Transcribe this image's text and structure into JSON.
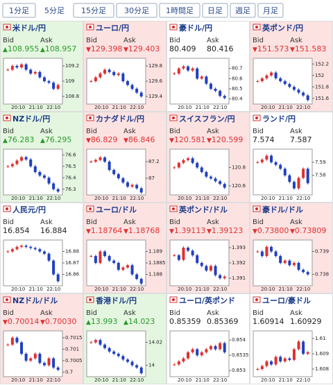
{
  "tabs": [
    "1分足",
    "5分足",
    "15分足",
    "30分足",
    "1時間足",
    "日足",
    "週足",
    "月足"
  ],
  "selected_tab": 1,
  "bid_label": "Bid",
  "ask_label": "Ask",
  "time_labels": [
    "20:10",
    "21:10",
    "22:10"
  ],
  "tiles": [
    {
      "name": "米ドル/円",
      "arrow": "▲",
      "bid": "108.955",
      "ask": "108.957",
      "ylim": [
        108.7,
        109.3
      ],
      "yticks": [
        109.2,
        109,
        108.8
      ],
      "closes": [
        109.15,
        109.2,
        109.18,
        109.22,
        109.15,
        109.1,
        109.12,
        109.05,
        109.0,
        108.98,
        108.9,
        108.95
      ]
    },
    {
      "name": "ユーロ/円",
      "arrow": "▼",
      "bid": "129.398",
      "ask": "129.403",
      "ylim": [
        129.3,
        129.9
      ],
      "yticks": [
        129.8,
        129.6,
        129.4
      ],
      "closes": [
        129.6,
        129.65,
        129.7,
        129.75,
        129.72,
        129.68,
        129.7,
        129.6,
        129.55,
        129.5,
        129.45,
        129.4
      ]
    },
    {
      "name": "豪ドル/円",
      "bid": "80.409",
      "ask": "80.416",
      "ylim": [
        80.35,
        80.8
      ],
      "yticks": [
        80.7,
        80.6,
        80.5,
        80.4
      ],
      "closes": [
        80.65,
        80.7,
        80.72,
        80.68,
        80.7,
        80.6,
        80.62,
        80.55,
        80.5,
        80.48,
        80.43,
        80.41
      ]
    },
    {
      "name": "英ポンド/円",
      "arrow": "▼",
      "bid": "151.573",
      "ask": "151.583",
      "ylim": [
        151.5,
        152.3
      ],
      "yticks": [
        152.2,
        152,
        151.8,
        151.6
      ],
      "closes": [
        151.9,
        151.95,
        152.0,
        152.05,
        151.95,
        151.9,
        151.85,
        151.8,
        151.75,
        151.7,
        151.65,
        151.57
      ]
    },
    {
      "name": "NZドル/円",
      "arrow": "▲",
      "bid": "76.283",
      "ask": "76.295",
      "ylim": [
        76.25,
        76.65
      ],
      "yticks": [
        76.6,
        76.5,
        76.4,
        76.3
      ],
      "closes": [
        76.5,
        76.52,
        76.55,
        76.58,
        76.56,
        76.5,
        76.45,
        76.42,
        76.4,
        76.35,
        76.3,
        76.28
      ]
    },
    {
      "name": "カナダドル/円",
      "arrow": "▼",
      "bid": "86.829",
      "ask": "86.846",
      "ylim": [
        86.8,
        87.35
      ],
      "yticks": [
        87.2,
        87
      ],
      "closes": [
        87.2,
        87.22,
        87.25,
        87.2,
        87.1,
        87.05,
        87.0,
        86.95,
        86.9,
        86.92,
        86.88,
        86.83
      ]
    },
    {
      "name": "スイスフラン/円",
      "arrow": "▼",
      "bid": "120.581",
      "ask": "120.599",
      "ylim": [
        120.5,
        121.0
      ],
      "yticks": [
        120.8,
        120.6
      ],
      "closes": [
        120.8,
        120.85,
        120.88,
        120.9,
        120.85,
        120.8,
        120.75,
        120.7,
        120.68,
        120.65,
        120.62,
        120.58
      ]
    },
    {
      "name": "ランド/円",
      "bid": "7.574",
      "ask": "7.587",
      "ylim": [
        7.565,
        7.6
      ],
      "yticks": [
        7.59,
        7.58
      ],
      "closes": [
        7.59,
        7.592,
        7.595,
        7.59,
        7.588,
        7.585,
        7.58,
        7.575,
        7.57,
        7.578,
        7.585,
        7.574
      ]
    },
    {
      "name": "人民元/円",
      "bid": "16.854",
      "ask": "16.884",
      "ylim": [
        16.85,
        16.89
      ],
      "yticks": [
        16.88,
        16.87,
        16.86
      ],
      "closes": [
        16.88,
        16.882,
        16.884,
        16.885,
        16.884,
        16.883,
        16.882,
        16.88,
        16.878,
        16.872,
        16.86,
        16.854
      ]
    },
    {
      "name": "ユーロ/ドル",
      "arrow": "▼",
      "bid": "1.18764",
      "ask": "1.18768",
      "ylim": [
        1.1875,
        1.1895
      ],
      "yticks": [
        1.189,
        1.1885,
        1.188
      ],
      "closes": [
        1.1888,
        1.1885,
        1.189,
        1.1888,
        1.1886,
        1.1885,
        1.1882,
        1.1883,
        1.1884,
        1.188,
        1.1878,
        1.1876
      ]
    },
    {
      "name": "英ポンド/ドル",
      "arrow": "▼",
      "bid": "1.39113",
      "ask": "1.39123",
      "ylim": [
        1.3905,
        1.3935
      ],
      "yticks": [
        1.393,
        1.392,
        1.391
      ],
      "closes": [
        1.3925,
        1.3922,
        1.393,
        1.3928,
        1.3925,
        1.392,
        1.3918,
        1.3915,
        1.3918,
        1.3912,
        1.391,
        1.3911
      ]
    },
    {
      "name": "豪ドル/ドル",
      "arrow": "▼",
      "bid": "0.73800",
      "ask": "0.73809",
      "ylim": [
        0.7375,
        0.7395
      ],
      "yticks": [
        0.739,
        0.738
      ],
      "closes": [
        0.739,
        0.7388,
        0.7392,
        0.739,
        0.7388,
        0.7385,
        0.7386,
        0.7384,
        0.7385,
        0.7382,
        0.7381,
        0.738
      ]
    },
    {
      "name": "NZドル/ドル",
      "arrow": "▼",
      "bid": "0.70014",
      "ask": "0.70030",
      "ylim": [
        0.6998,
        0.7018
      ],
      "yticks": [
        0.7015,
        0.701,
        0.7005,
        0.7
      ],
      "closes": [
        0.7012,
        0.7015,
        0.7013,
        0.7008,
        0.7005,
        0.7006,
        0.7008,
        0.7004,
        0.7003,
        0.7006,
        0.7002,
        0.7001
      ]
    },
    {
      "name": "香港ドル/円",
      "arrow": "▲",
      "bid": "13.993",
      "ask": "14.023",
      "ylim": [
        13.99,
        14.03
      ],
      "yticks": [
        14.02,
        14
      ],
      "closes": [
        14.02,
        14.022,
        14.018,
        14.015,
        14.012,
        14.01,
        14.008,
        14.005,
        14.003,
        14.0,
        13.998,
        13.993
      ]
    },
    {
      "name": "ユーロ/英ポンド",
      "bid": "0.85359",
      "ask": "0.85369",
      "ylim": [
        0.8528,
        0.8543
      ],
      "yticks": [
        0.854,
        0.8535,
        0.853
      ],
      "closes": [
        0.8532,
        0.8533,
        0.8534,
        0.8536,
        0.8537,
        0.8535,
        0.8536,
        0.8537,
        0.8538,
        0.8537,
        0.8539,
        0.8536
      ]
    },
    {
      "name": "ユーロ/豪ドル",
      "bid": "1.60914",
      "ask": "1.60929",
      "ylim": [
        1.6075,
        1.6105
      ],
      "yticks": [
        1.61,
        1.609,
        1.608
      ],
      "closes": [
        1.608,
        1.6082,
        1.6085,
        1.6083,
        1.6088,
        1.6085,
        1.6087,
        1.6086,
        1.6093,
        1.6098,
        1.609,
        1.6091
      ]
    }
  ]
}
